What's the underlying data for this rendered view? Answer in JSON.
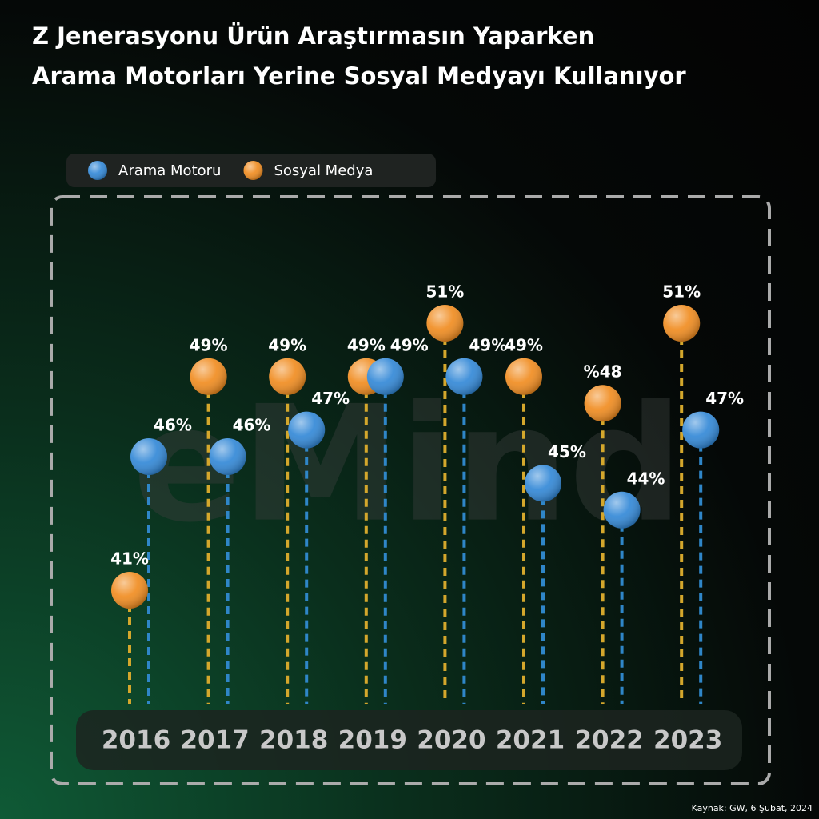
{
  "chart_data": {
    "type": "lollipop",
    "title": "Z Jenerasyonu  Ürün Araştırmasın Yaparken",
    "subtitle": "Arama Motorları Yerine Sosyal Medyayı Kullanıyor",
    "watermark": "eMind",
    "source": "Kaynak: GW, 6 Şubat, 2024",
    "categories": [
      "2016",
      "2017",
      "2018",
      "2019",
      "2020",
      "2021",
      "2022",
      "2023"
    ],
    "series": [
      {
        "name": "Sosyal Medya",
        "color": "#f08a1c",
        "stem_color": "#d4a72c",
        "values": [
          41,
          49,
          49,
          49,
          51,
          49,
          48,
          51
        ],
        "value_labels": [
          "41%",
          "49%",
          "49%",
          "49%",
          "51%",
          "49%",
          "%48",
          "51%"
        ]
      },
      {
        "name": "Arama Motoru",
        "color": "#2f86d6",
        "stem_color": "#2f86c8",
        "values": [
          46,
          46,
          47,
          49,
          49,
          45,
          44,
          47
        ],
        "value_labels": [
          "46%",
          "46%",
          "47%",
          "49%",
          "49%",
          "45%",
          "44%",
          "47%"
        ]
      }
    ],
    "legend_order": [
      1,
      0
    ]
  }
}
